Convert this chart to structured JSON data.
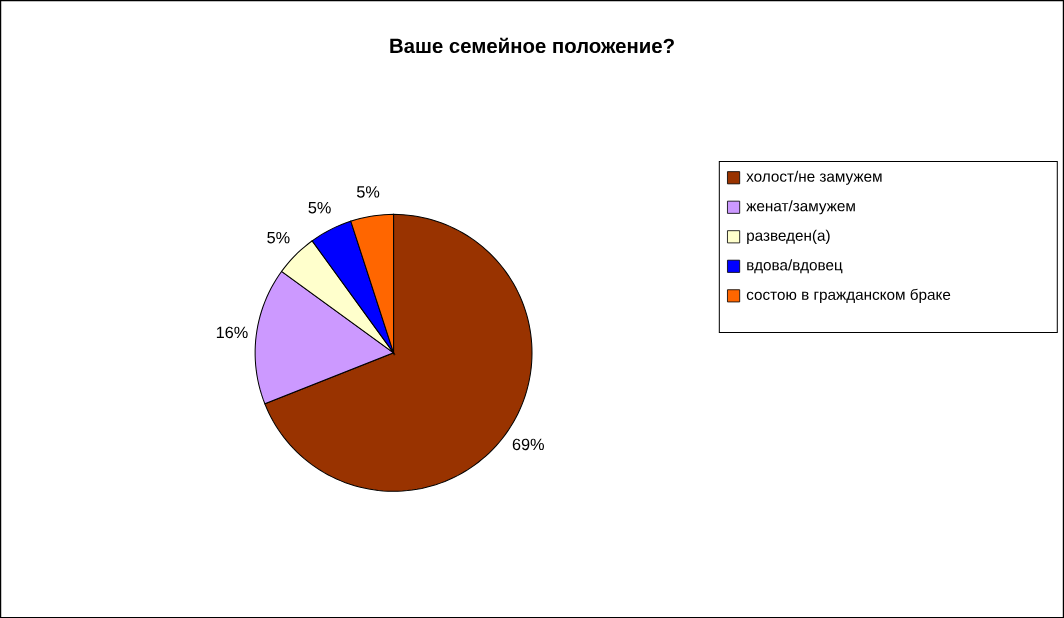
{
  "chart_data": {
    "type": "pie",
    "title": "Ваше семейное положение?",
    "categories": [
      "холост/не замужем",
      "женат/замужем",
      "разведен(а)",
      "вдова/вдовец",
      "состою в гражданском браке"
    ],
    "values": [
      69,
      16,
      5,
      5,
      5
    ],
    "colors": [
      "#993300",
      "#cc99ff",
      "#ffffcc",
      "#0000ff",
      "#ff6600"
    ],
    "value_labels": [
      "69%",
      "16%",
      "5%",
      "5%",
      "5%"
    ],
    "legend": "right"
  }
}
